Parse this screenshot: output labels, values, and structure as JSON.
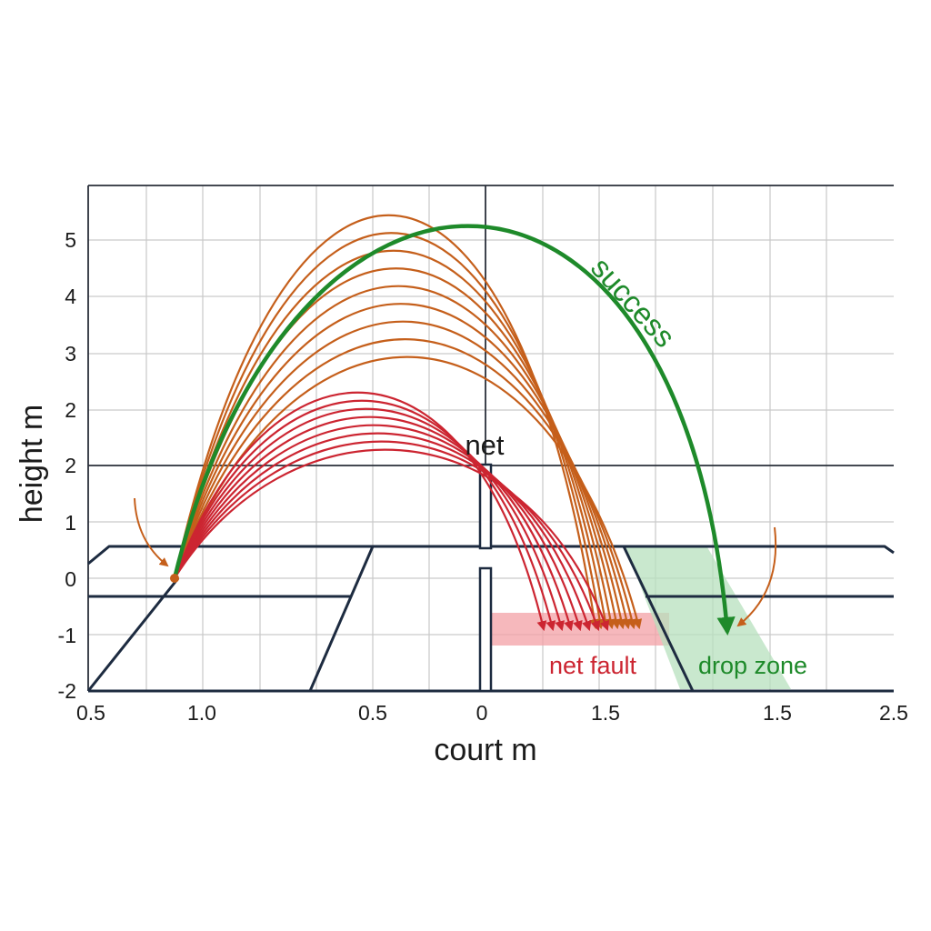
{
  "axes": {
    "y_label": "height m",
    "x_label": "court m",
    "y_ticks": [
      "5",
      "4",
      "3",
      "2",
      "2",
      "1",
      "0",
      "-1",
      "-2"
    ],
    "x_ticks": [
      "0.5",
      "1.0",
      "0.5",
      "0",
      "1.5",
      "1.5",
      "2.5"
    ]
  },
  "labels": {
    "net": "net",
    "success": "success",
    "net_fault": "net fault",
    "drop_zone": "drop zone"
  },
  "trajectories": {
    "success_count": 1,
    "orange_count": 9,
    "red_count": 8
  },
  "colors": {
    "success": "#1e8a2a",
    "orange": "#c55f1b",
    "red": "#cc2531",
    "court_lines": "#1d2b40",
    "grid": "#c9c9c9",
    "net_fault_zone": "#f3a0a6",
    "drop_zone": "#b7e0bd"
  }
}
